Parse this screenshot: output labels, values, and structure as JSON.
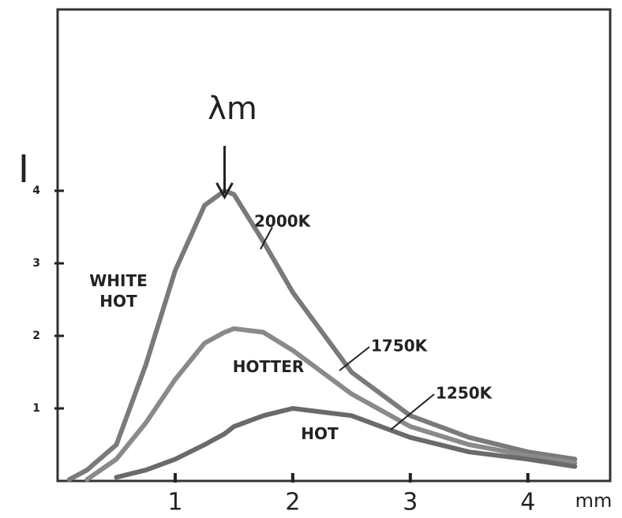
{
  "chart_data": {
    "type": "line",
    "xlabel": "mm",
    "ylabel": "I",
    "peak_label": "λm",
    "x": [
      0.1,
      0.25,
      0.5,
      0.75,
      1,
      1.25,
      1.42,
      1.5,
      1.75,
      2,
      2.5,
      3,
      3.5,
      4,
      4.4
    ],
    "series": [
      {
        "name": "2000K",
        "color": "#7a7a7a",
        "values": [
          0.02,
          0.15,
          0.5,
          1.6,
          2.9,
          3.8,
          4.0,
          3.95,
          3.3,
          2.6,
          1.5,
          0.9,
          0.6,
          0.4,
          0.3
        ]
      },
      {
        "name": "1750K",
        "color": "#8a8a8a",
        "values": [
          null,
          0.02,
          0.3,
          0.8,
          1.4,
          1.9,
          2.05,
          2.1,
          2.05,
          1.8,
          1.2,
          0.75,
          0.5,
          0.35,
          0.25
        ]
      },
      {
        "name": "1250K",
        "color": "#6a6a6a",
        "values": [
          null,
          null,
          0.05,
          0.15,
          0.3,
          0.5,
          0.65,
          0.75,
          0.9,
          1.0,
          0.9,
          0.6,
          0.4,
          0.3,
          0.2
        ]
      }
    ],
    "region_labels": [
      "WHITE HOT",
      "HOTTER",
      "HOT"
    ],
    "xlim": [
      0,
      4.7
    ],
    "ylim": [
      0,
      6.5
    ],
    "xticks": [
      1,
      2,
      3,
      4
    ],
    "yticks": [
      1,
      2,
      3,
      4
    ],
    "grid": false
  }
}
